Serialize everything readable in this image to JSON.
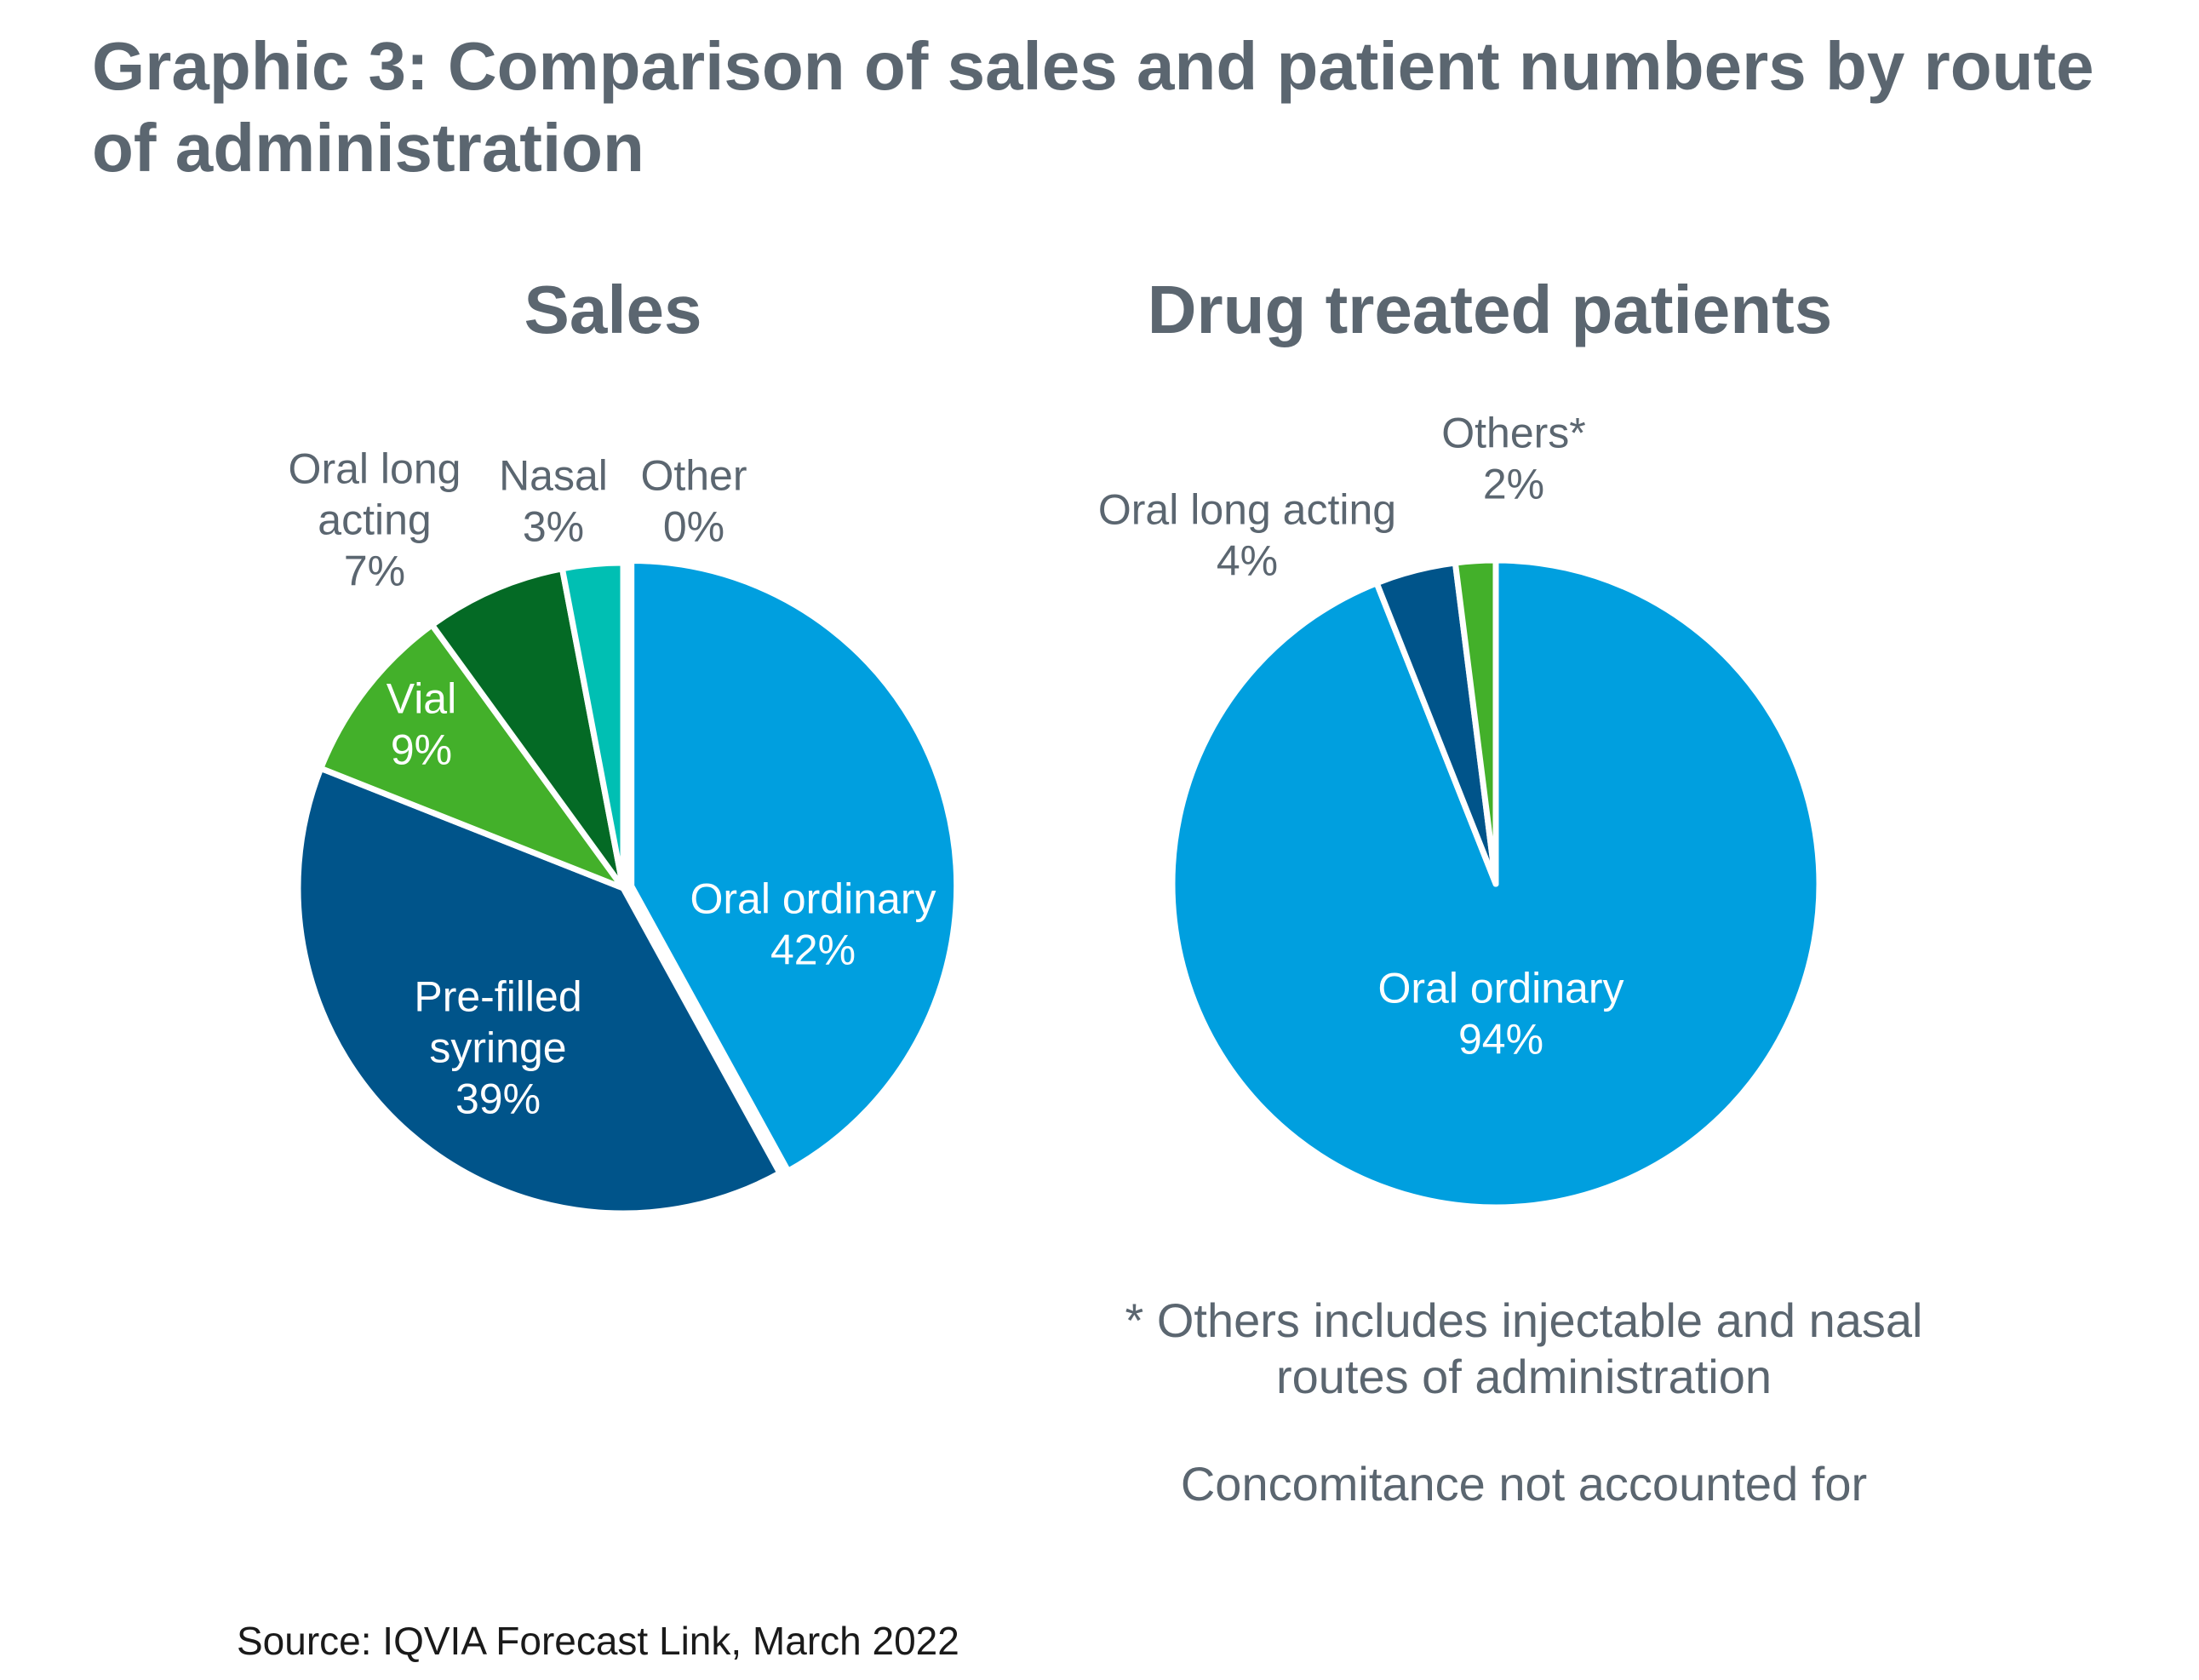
{
  "title": "Graphic 3: Comparison of sales and patient numbers by route of administration",
  "chart_data": [
    {
      "type": "pie",
      "title": "Sales",
      "unit": "%",
      "slices": [
        {
          "label": [
            "Oral ordinary"
          ],
          "value": 42,
          "display": "42%",
          "color": "#009fdf",
          "label_color": "#ffffff",
          "label_pos": "inside"
        },
        {
          "label": [
            "Pre-filled",
            "syringe"
          ],
          "value": 39,
          "display": "39%",
          "color": "#00548a",
          "label_color": "#ffffff",
          "label_pos": "inside"
        },
        {
          "label": [
            "Vial"
          ],
          "value": 9,
          "display": "9%",
          "color": "#43b02a",
          "label_color": "#ffffff",
          "label_pos": "inside"
        },
        {
          "label": [
            "Oral long",
            "acting"
          ],
          "value": 7,
          "display": "7%",
          "color": "#046a25",
          "label_color": "#5b6670",
          "label_pos": "outside"
        },
        {
          "label": [
            "Nasal"
          ],
          "value": 3,
          "display": "3%",
          "color": "#00bfb3",
          "label_color": "#5b6670",
          "label_pos": "outside"
        },
        {
          "label": [
            "Other"
          ],
          "value": 0,
          "display": "0%",
          "color": "#c4d600",
          "label_color": "#5b6670",
          "label_pos": "outside"
        }
      ]
    },
    {
      "type": "pie",
      "title": "Drug treated patients",
      "unit": "%",
      "slices": [
        {
          "label": [
            "Oral ordinary"
          ],
          "value": 94,
          "display": "94%",
          "color": "#009fdf",
          "label_color": "#ffffff",
          "label_pos": "inside"
        },
        {
          "label": [
            "Oral long acting"
          ],
          "value": 4,
          "display": "4%",
          "color": "#00548a",
          "label_color": "#5b6670",
          "label_pos": "outside"
        },
        {
          "label": [
            "Others*"
          ],
          "value": 2,
          "display": "2%",
          "color": "#43b02a",
          "label_color": "#5b6670",
          "label_pos": "outside"
        }
      ]
    }
  ],
  "footnote_lines": [
    "* Others includes injectable and nasal",
    "routes of administration"
  ],
  "footnote_2": "Concomitance not accounted for",
  "source": "Source: IQVIA Forecast Link, March 2022"
}
